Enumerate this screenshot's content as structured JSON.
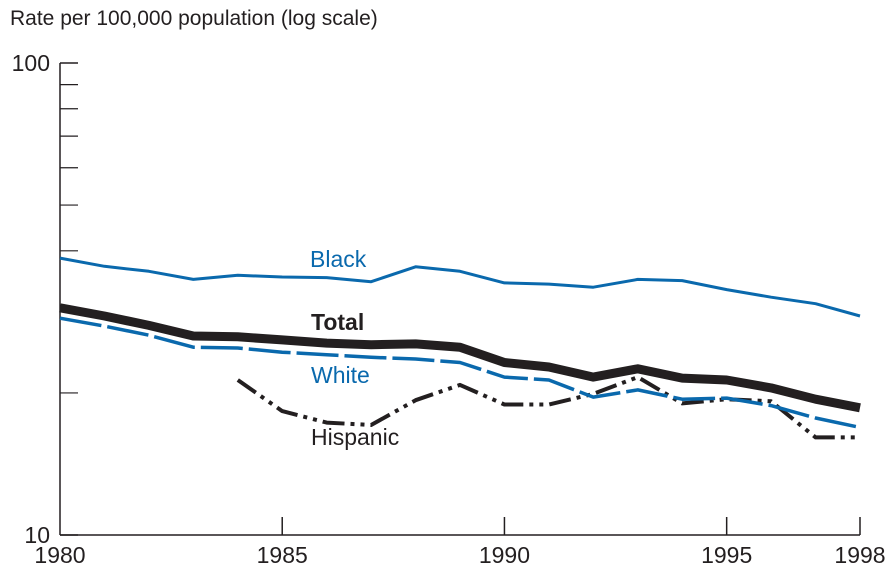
{
  "chart_data": {
    "type": "line",
    "title": "",
    "ylabel": "Rate per 100,000 population (log scale)",
    "xlabel": "",
    "y_scale": "log",
    "xlim": [
      1980,
      1998
    ],
    "ylim": [
      10,
      100
    ],
    "x_ticks": [
      1980,
      1985,
      1990,
      1995,
      1998
    ],
    "x_tick_labels": [
      "1980",
      "1985",
      "1990",
      "1995",
      "1998"
    ],
    "y_ticks": [
      10,
      100
    ],
    "y_tick_labels": [
      "10",
      "100"
    ],
    "y_minor_ticks": [
      20,
      30,
      40,
      50,
      60,
      70,
      80,
      90
    ],
    "grid": false,
    "legend": "direct labels on lines",
    "series": [
      {
        "name": "Black",
        "color": "#0a69ad",
        "style": "solid",
        "x": [
          1980,
          1981,
          1982,
          1983,
          1984,
          1985,
          1986,
          1987,
          1988,
          1989,
          1990,
          1991,
          1992,
          1993,
          1994,
          1995,
          1996,
          1997,
          1998
        ],
        "values": [
          38.6,
          37.1,
          36.2,
          34.8,
          35.5,
          35.2,
          35.1,
          34.4,
          37.0,
          36.2,
          34.2,
          34.0,
          33.5,
          34.8,
          34.6,
          33.1,
          31.9,
          30.9,
          29.1
        ]
      },
      {
        "name": "Total",
        "color": "#231f20",
        "style": "thick",
        "x": [
          1980,
          1981,
          1982,
          1983,
          1984,
          1985,
          1986,
          1987,
          1988,
          1989,
          1990,
          1991,
          1992,
          1993,
          1994,
          1995,
          1996,
          1997,
          1998
        ],
        "values": [
          30.3,
          29.1,
          27.8,
          26.4,
          26.3,
          25.9,
          25.5,
          25.3,
          25.4,
          25.0,
          23.2,
          22.7,
          21.6,
          22.5,
          21.5,
          21.3,
          20.5,
          19.4,
          18.6
        ]
      },
      {
        "name": "White",
        "color": "#0a69ad",
        "style": "long-dash",
        "x": [
          1980,
          1981,
          1982,
          1983,
          1984,
          1985,
          1986,
          1987,
          1988,
          1989,
          1990,
          1991,
          1992,
          1993,
          1994,
          1995,
          1996,
          1997,
          1998
        ],
        "values": [
          28.8,
          27.7,
          26.5,
          25.0,
          24.9,
          24.4,
          24.1,
          23.8,
          23.6,
          23.2,
          21.6,
          21.3,
          19.6,
          20.3,
          19.4,
          19.5,
          18.8,
          17.7,
          16.9
        ]
      },
      {
        "name": "Hispanic",
        "color": "#231f20",
        "style": "dash-dot-dot",
        "x": [
          1984,
          1985,
          1986,
          1987,
          1988,
          1989,
          1990,
          1991,
          1992,
          1993,
          1994,
          1995,
          1996,
          1997,
          1998
        ],
        "values": [
          21.3,
          18.3,
          17.3,
          17.1,
          19.3,
          20.8,
          18.9,
          18.9,
          19.9,
          21.6,
          19.0,
          19.4,
          19.2,
          16.1,
          16.1
        ]
      }
    ]
  }
}
